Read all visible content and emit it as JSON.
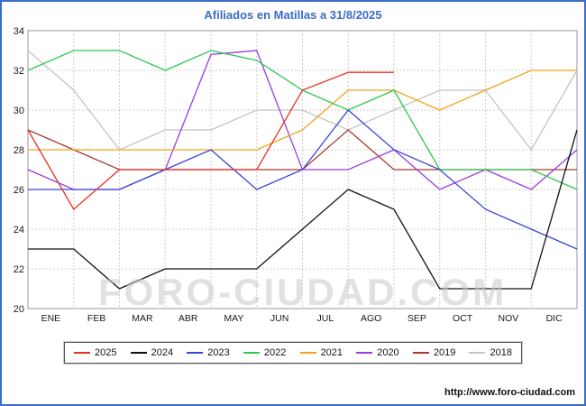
{
  "watermark": "FORO-CIUDAD.COM",
  "footer": {
    "url": "http://www.foro-ciudad.com"
  },
  "colors": {
    "frame": "#3b6cc7",
    "title": "#3b6cc7",
    "grid": "#cccccc",
    "plot_border": "#999999",
    "axis_text": "#1a1a1a",
    "watermark": "#c9c9c9"
  },
  "chart_data": {
    "type": "line",
    "title": "Afiliados en Matillas a 31/8/2025",
    "xlabel": "",
    "ylabel": "",
    "ylim": [
      20,
      34
    ],
    "ytick_step": 2,
    "grid": true,
    "legend_position": "bottom",
    "x_labels": [
      "ENE",
      "FEB",
      "MAR",
      "ABR",
      "MAY",
      "JUN",
      "JUL",
      "AGO",
      "SEP",
      "OCT",
      "NOV",
      "DIC"
    ],
    "series": [
      {
        "name": "2025",
        "color": "#e63323",
        "values": [
          29,
          25,
          27,
          27,
          27,
          27,
          31,
          31.9,
          31.9,
          null,
          null,
          null,
          null
        ]
      },
      {
        "name": "2024",
        "color": "#111111",
        "values": [
          23,
          23,
          21,
          22,
          22,
          22,
          24,
          26,
          25,
          21,
          21,
          21,
          29
        ]
      },
      {
        "name": "2023",
        "color": "#3747d6",
        "values": [
          26,
          26,
          26,
          27,
          28,
          26,
          27,
          30,
          28,
          27,
          25,
          24,
          23
        ]
      },
      {
        "name": "2022",
        "color": "#2ec84e",
        "values": [
          32,
          33,
          33,
          32,
          33,
          32.5,
          31,
          30,
          31,
          27,
          27,
          27,
          26
        ]
      },
      {
        "name": "2021",
        "color": "#f6a01a",
        "values": [
          28,
          28,
          28,
          28,
          28,
          28,
          29,
          31,
          31,
          30,
          31,
          32,
          32
        ]
      },
      {
        "name": "2020",
        "color": "#9d3be0",
        "values": [
          27,
          26,
          26,
          27,
          32.8,
          33,
          27,
          27,
          28,
          26,
          27,
          26,
          28
        ]
      },
      {
        "name": "2019",
        "color": "#aa3a30",
        "values": [
          29,
          28,
          27,
          27,
          27,
          27,
          27,
          29,
          27,
          27,
          27,
          27,
          27
        ]
      },
      {
        "name": "2018",
        "color": "#c4c4c4",
        "values": [
          33,
          31,
          28,
          29,
          29,
          30,
          30,
          29,
          30,
          31,
          31,
          28,
          32
        ]
      }
    ]
  }
}
